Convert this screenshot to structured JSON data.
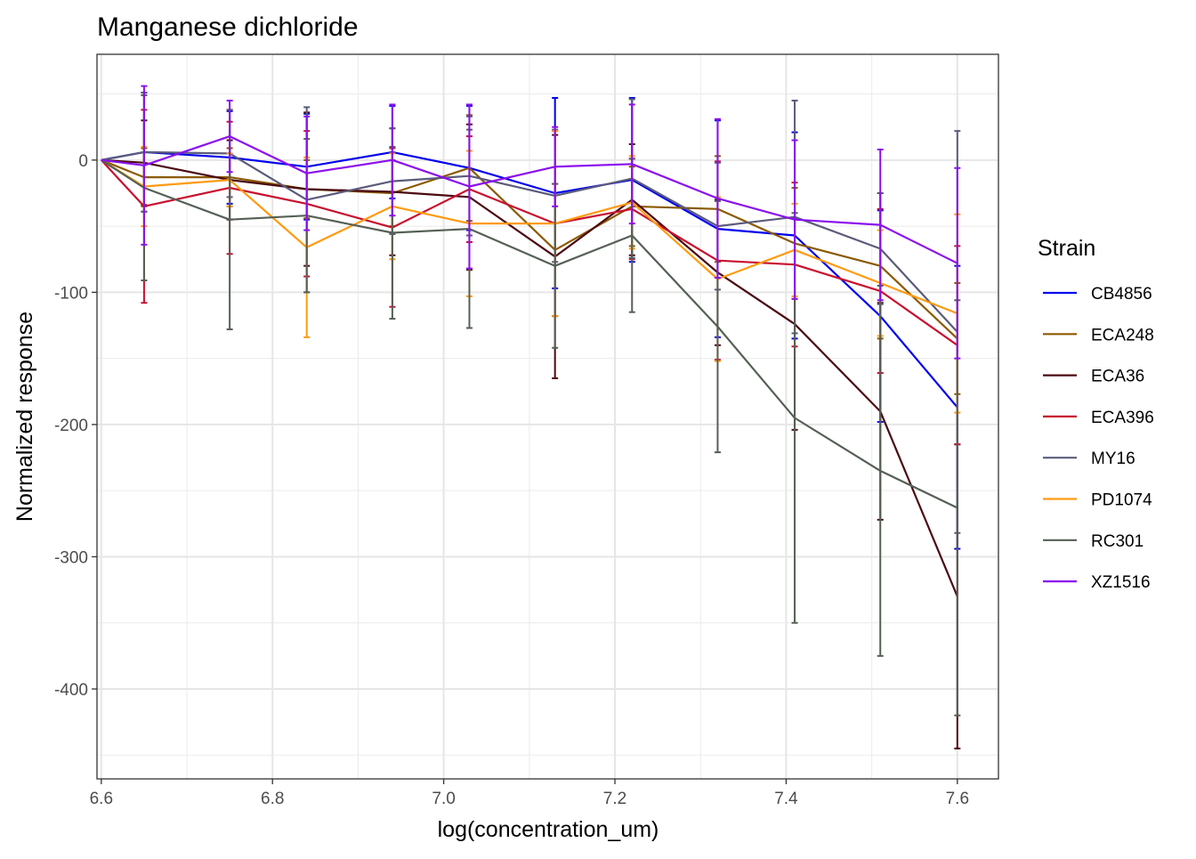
{
  "chart_data": {
    "type": "line",
    "title": "Manganese dichloride",
    "xlabel": "log(concentration_um)",
    "ylabel": "Normalized response",
    "xlim": [
      6.595,
      7.648
    ],
    "ylim": [
      -468,
      80
    ],
    "x_ticks": [
      6.6,
      6.8,
      7.0,
      7.2,
      7.4,
      7.6
    ],
    "x_tick_labels": [
      "6.6",
      "6.8",
      "7.0",
      "7.2",
      "7.4",
      "7.6"
    ],
    "y_ticks": [
      -400,
      -300,
      -200,
      -100,
      0
    ],
    "y_tick_labels": [
      "-400",
      "-300",
      "-200",
      "-100",
      "0"
    ],
    "grid": true,
    "legend_title": "Strain",
    "legend_position": "right",
    "x": [
      6.6,
      6.65,
      6.75,
      6.84,
      6.94,
      7.03,
      7.13,
      7.22,
      7.32,
      7.41,
      7.51,
      7.6
    ],
    "series": [
      {
        "name": "CB4856",
        "color": "#0000ee",
        "values": [
          0,
          6,
          2,
          -5,
          6,
          -6,
          -25,
          -15,
          -52,
          -57,
          -118,
          -187
        ],
        "err": [
          0,
          45,
          35,
          40,
          35,
          47,
          72,
          62,
          82,
          78,
          80,
          107
        ]
      },
      {
        "name": "ECA248",
        "color": "#8b5a00",
        "values": [
          0,
          -13,
          -13,
          -22,
          -25,
          -6,
          -68,
          -35,
          -37,
          -63,
          -80,
          -135
        ],
        "err": [
          0,
          22,
          22,
          22,
          25,
          40,
          50,
          30,
          40,
          42,
          55,
          42
        ]
      },
      {
        "name": "ECA36",
        "color": "#4b0a12",
        "values": [
          0,
          -2,
          -15,
          -22,
          -24,
          -28,
          -73,
          -30,
          -85,
          -124,
          -190,
          -330
        ],
        "err": [
          0,
          32,
          30,
          58,
          48,
          55,
          92,
          42,
          55,
          80,
          82,
          115
        ]
      },
      {
        "name": "ECA396",
        "color": "#c8102e",
        "values": [
          0,
          -35,
          -21,
          -33,
          -51,
          -22,
          -48,
          -37,
          -76,
          -79,
          -99,
          -140
        ],
        "err": [
          0,
          73,
          50,
          55,
          60,
          40,
          70,
          38,
          75,
          62,
          62,
          75
        ]
      },
      {
        "name": "MY16",
        "color": "#5b5b7b",
        "values": [
          0,
          6,
          5,
          -30,
          -16,
          -12,
          -27,
          -14,
          -50,
          -43,
          -67,
          -130
        ],
        "err": [
          0,
          45,
          33,
          70,
          40,
          45,
          50,
          60,
          48,
          88,
          42,
          152
        ]
      },
      {
        "name": "PD1074",
        "color": "#ff9a10",
        "values": [
          0,
          -20,
          -15,
          -66,
          -35,
          -48,
          -48,
          -32,
          -90,
          -68,
          -93,
          -116
        ],
        "err": [
          0,
          30,
          20,
          68,
          40,
          55,
          70,
          35,
          62,
          35,
          40,
          75
        ]
      },
      {
        "name": "RC301",
        "color": "#556055",
        "values": [
          0,
          -21,
          -45,
          -42,
          -55,
          -52,
          -80,
          -57,
          -126,
          -195,
          -235,
          -263
        ],
        "err": [
          0,
          70,
          83,
          58,
          65,
          75,
          62,
          58,
          95,
          155,
          140,
          157
        ]
      },
      {
        "name": "XZ1516",
        "color": "#8b10ee",
        "values": [
          0,
          -4,
          18,
          -10,
          0,
          -20,
          -5,
          -3,
          -29,
          -45,
          -49,
          -78
        ],
        "err": [
          0,
          60,
          27,
          43,
          42,
          62,
          30,
          45,
          60,
          60,
          57,
          72
        ]
      }
    ]
  }
}
